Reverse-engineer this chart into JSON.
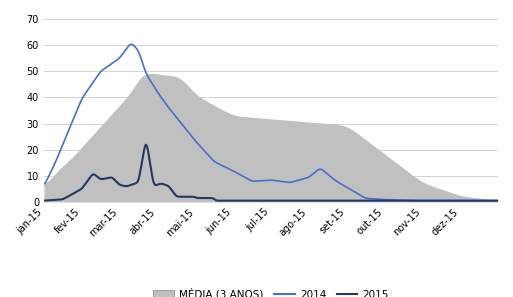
{
  "title": "",
  "ylabel": "",
  "ylim": [
    0,
    70
  ],
  "yticks": [
    0,
    10,
    20,
    30,
    40,
    50,
    60,
    70
  ],
  "months": [
    "jan-15",
    "fev-15",
    "mar-15",
    "abr-15",
    "mai-15",
    "jun-15",
    "jul-15",
    "ago-15",
    "set-15",
    "out-15",
    "nov-15",
    "dez-15"
  ],
  "media_x": [
    0,
    1,
    2,
    3,
    4,
    5,
    6,
    7,
    8,
    9,
    10,
    11,
    12,
    13,
    14,
    15,
    16,
    17,
    18,
    19,
    20,
    21,
    22,
    23,
    24,
    25,
    26,
    27,
    28,
    29,
    30,
    31,
    32,
    33,
    34,
    35,
    36,
    37,
    38,
    39,
    40,
    41,
    42,
    43,
    44,
    45,
    46,
    47,
    48,
    49,
    50,
    51,
    52,
    53,
    54,
    55,
    56,
    57,
    58,
    59,
    60,
    61,
    62,
    63,
    64,
    65,
    66,
    67,
    68,
    69,
    70,
    71,
    72,
    73,
    74,
    75,
    76,
    77,
    78,
    79,
    80,
    81,
    82,
    83,
    84,
    85,
    86,
    87,
    88,
    89,
    90,
    91,
    92,
    93,
    94,
    95,
    96,
    97,
    98,
    99,
    100,
    101,
    102,
    103,
    104,
    105,
    106,
    107,
    108,
    109,
    110,
    111,
    112,
    113,
    114,
    115,
    116,
    117,
    118,
    119,
    120,
    121,
    122,
    123,
    124,
    125,
    126,
    127,
    128,
    129,
    130,
    131,
    132,
    133,
    134,
    135,
    136,
    137,
    138,
    139,
    140,
    141,
    142,
    143,
    144,
    145,
    146,
    147,
    148,
    149,
    150,
    151,
    152,
    153,
    154,
    155,
    156,
    157,
    158,
    159,
    160,
    161,
    162,
    163,
    164
  ],
  "media_color": "#c0c0c0",
  "line2014_color": "#4472C4",
  "line2015_color": "#1F3864",
  "legend_patch_color": "#c0c0c0",
  "background_color": "#ffffff",
  "grid_color": "#cccccc"
}
